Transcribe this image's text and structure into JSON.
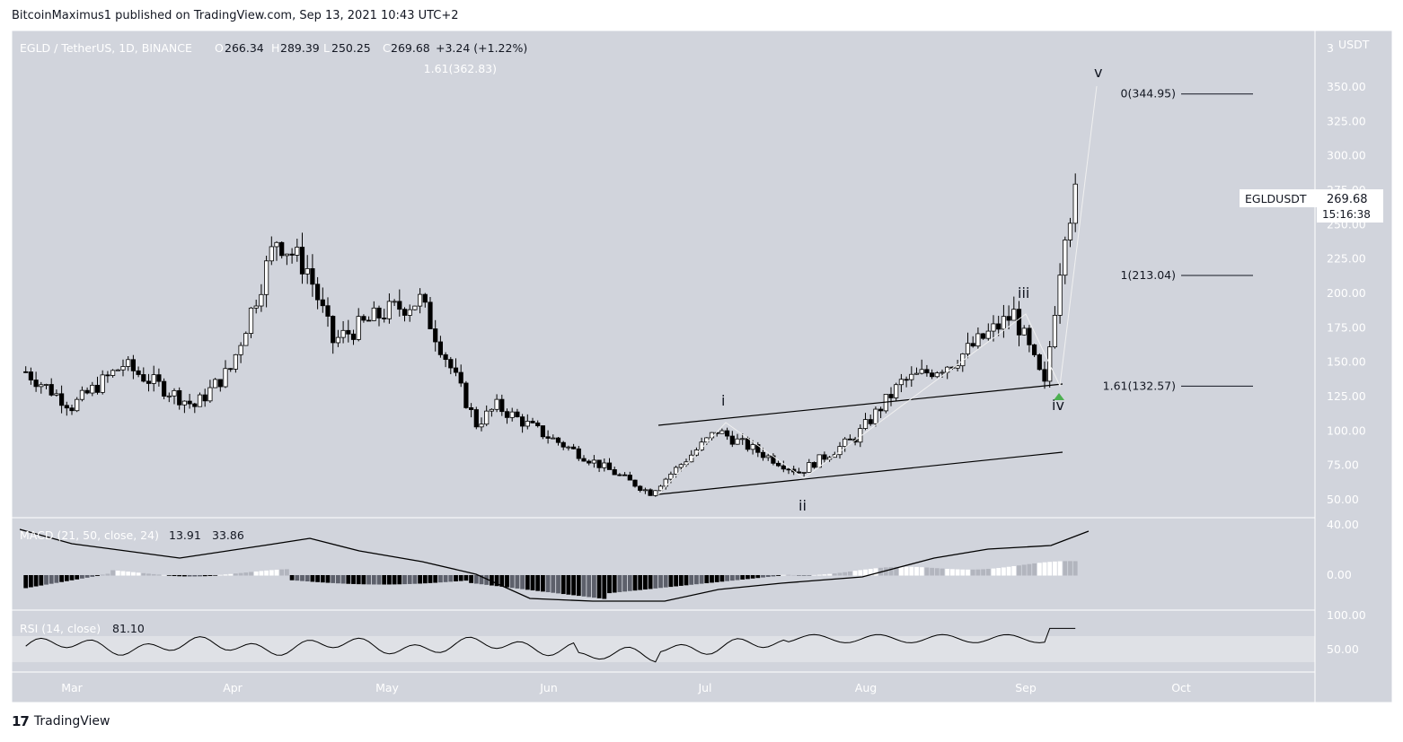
{
  "header": {
    "published": "BitcoinMaximus1 published on TradingView.com, Sep 13, 2021 10:43 UTC+2"
  },
  "footer": {
    "brand": "TradingView"
  },
  "legend": {
    "symbol": "EGLD / TetherUS, 1D, BINANCE",
    "o_label": "O",
    "o_value": "266.34",
    "h_label": "H",
    "h_value": "289.39",
    "l_label": "L",
    "l_value": "250.25",
    "c_label": "C",
    "c_value": "269.68",
    "change": "+3.24 (+1.22%)"
  },
  "price_axis": {
    "unit": "USDT",
    "top_partial": "3"
  },
  "last_price": {
    "ticker": "EGLDUSDT",
    "price": "269.68",
    "countdown": "15:16:38"
  },
  "fib_levels": [
    {
      "label": "1.61(362.83)",
      "value": 362.83
    },
    {
      "label": "0(344.95)",
      "value": 344.95
    },
    {
      "label": "1(213.04)",
      "value": 213.04
    },
    {
      "label": "1.61(132.57)",
      "value": 132.57
    }
  ],
  "wave_labels": [
    "i",
    "ii",
    "iii",
    "iv",
    "v"
  ],
  "macd": {
    "label": "MACD (21, 50, close, 24)",
    "v1": "13.91",
    "v2": "33.86",
    "ticks": [
      "40.00",
      "0.00"
    ]
  },
  "rsi": {
    "label": "RSI (14, close)",
    "value": "81.10",
    "ticks": [
      "100.00",
      "50.00"
    ]
  },
  "colors": {
    "background": "#d1d4dc",
    "up": "#ffffff",
    "down": "#000000",
    "accent": "#4caf50"
  },
  "chart_data": {
    "type": "candlestick",
    "x_axis_labels": [
      "Mar",
      "Apr",
      "May",
      "Jun",
      "Jul",
      "Aug",
      "Sep",
      "Oct"
    ],
    "y_ticks": [
      350,
      325,
      300,
      275,
      250,
      225,
      200,
      175,
      150,
      125,
      100,
      75,
      50
    ],
    "ylim": [
      40,
      370
    ],
    "series": [
      {
        "name": "EGLD/USDT daily",
        "points": [
          {
            "x": "Feb 20",
            "y": 143
          },
          {
            "x": "Mar 1",
            "y": 118
          },
          {
            "x": "Mar 11",
            "y": 148
          },
          {
            "x": "Mar 25",
            "y": 118
          },
          {
            "x": "Apr 1",
            "y": 145
          },
          {
            "x": "Apr 10",
            "y": 240
          },
          {
            "x": "Apr 16",
            "y": 218
          },
          {
            "x": "Apr 21",
            "y": 165
          },
          {
            "x": "May 1",
            "y": 186
          },
          {
            "x": "May 8",
            "y": 195
          },
          {
            "x": "May 19",
            "y": 105
          },
          {
            "x": "May 23",
            "y": 118
          },
          {
            "x": "Jun 1",
            "y": 98
          },
          {
            "x": "Jun 22",
            "y": 55
          },
          {
            "x": "Jul 5",
            "y": 100
          },
          {
            "x": "Jul 21",
            "y": 70
          },
          {
            "x": "Aug 1",
            "y": 95
          },
          {
            "x": "Aug 10",
            "y": 135
          },
          {
            "x": "Aug 20",
            "y": 150
          },
          {
            "x": "Sep 1",
            "y": 185
          },
          {
            "x": "Sep 7",
            "y": 132
          },
          {
            "x": "Sep 11",
            "y": 250
          },
          {
            "x": "Sep 13",
            "y": 269.68
          }
        ]
      }
    ]
  }
}
